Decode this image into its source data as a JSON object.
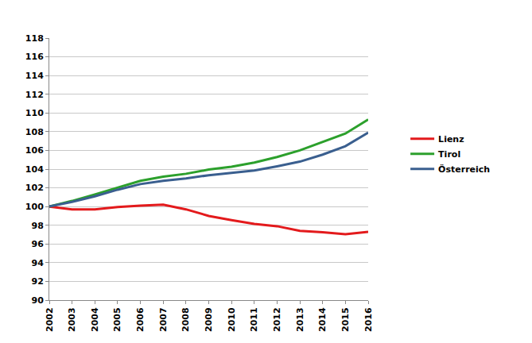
{
  "chart_data": {
    "type": "line",
    "x": [
      2002,
      2003,
      2004,
      2005,
      2006,
      2007,
      2008,
      2009,
      2010,
      2011,
      2012,
      2013,
      2014,
      2015,
      2016
    ],
    "series": [
      {
        "name": "Lienz",
        "color": "#e31a1c",
        "values": [
          100,
          99.7,
          99.7,
          99.95,
          100.1,
          100.2,
          99.7,
          99.0,
          98.55,
          98.15,
          97.9,
          97.4,
          97.25,
          97.05,
          97.3
        ]
      },
      {
        "name": "Tirol",
        "color": "#2ca02c",
        "values": [
          100,
          100.6,
          101.3,
          102.0,
          102.75,
          103.2,
          103.5,
          103.95,
          104.25,
          104.7,
          105.3,
          106.0,
          106.9,
          107.8,
          109.3
        ]
      },
      {
        "name": "Österreich",
        "color": "#3a5f8f",
        "values": [
          100,
          100.5,
          101.1,
          101.8,
          102.4,
          102.75,
          103.0,
          103.35,
          103.6,
          103.85,
          104.3,
          104.8,
          105.55,
          106.45,
          107.9
        ]
      }
    ],
    "xlim": [
      2002,
      2016
    ],
    "xticks": [
      2002,
      2003,
      2004,
      2005,
      2006,
      2007,
      2008,
      2009,
      2010,
      2011,
      2012,
      2013,
      2014,
      2015,
      2016
    ],
    "ylim": [
      90,
      118
    ],
    "yticks": [
      90,
      92,
      94,
      96,
      98,
      100,
      102,
      104,
      106,
      108,
      110,
      112,
      114,
      116,
      118
    ],
    "grid": true,
    "legend": "right"
  }
}
